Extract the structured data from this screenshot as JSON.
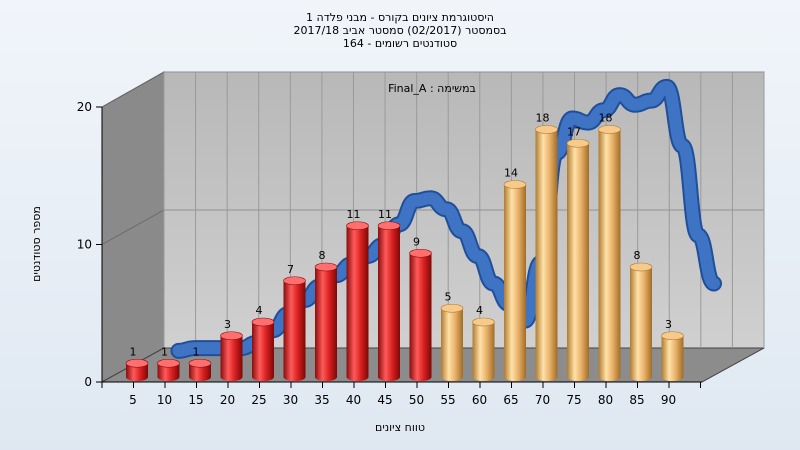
{
  "title_lines": [
    "היסטוגרמת ציונים בקורס - מבני פלדה 1",
    "בסמסטר  (02/2017)  סמסטר אביב 2017/18",
    "164 - סטודנטים רשומים"
  ],
  "colors": {
    "fail_bar": "#d62020",
    "pass_bar": "#e0a55a",
    "curve": "#3f74c4",
    "wall": "#c4c4c4",
    "left_wall": "#8a8a8a",
    "floor": "#8c8c8c"
  },
  "chart_data": {
    "type": "bar",
    "title": "היסטוגרמת ציונים בקורס - מבני פלדה 1",
    "annotation": "Final_A : במשימה",
    "xlabel": "טווח ציונים",
    "ylabel": "מספר סטודנטים",
    "ylim": [
      0,
      20
    ],
    "yticks": [
      0,
      10,
      20
    ],
    "grid": true,
    "categories": [
      "5",
      "10",
      "15",
      "20",
      "25",
      "30",
      "35",
      "40",
      "45",
      "50",
      "55",
      "60",
      "65",
      "70",
      "75",
      "80",
      "85",
      "90"
    ],
    "values": [
      1,
      1,
      1,
      3,
      4,
      7,
      8,
      11,
      11,
      9,
      5,
      4,
      14,
      18,
      17,
      18,
      8,
      3
    ],
    "pass_threshold": 55,
    "curve": {
      "x": [
        10,
        12.5,
        15,
        17.5,
        20,
        22.5,
        25,
        27.5,
        30,
        32.5,
        35,
        37.5,
        40,
        42.5,
        45,
        47.5,
        50,
        52.5,
        55,
        57.5,
        60,
        62.5,
        65,
        67.5,
        70,
        72.5,
        75,
        77.5,
        80,
        82.5,
        85,
        87.5,
        90,
        92.5,
        95
      ],
      "y": [
        1.1,
        1.3,
        1.3,
        1.3,
        1.3,
        1.7,
        2.6,
        3.8,
        4.8,
        5.8,
        6.6,
        7.4,
        8.0,
        8.8,
        10.3,
        12.0,
        12.2,
        11.4,
        9.8,
        8.0,
        6.0,
        4.5,
        3.3,
        7.5,
        15.5,
        18.0,
        17.7,
        18.6,
        19.7,
        19.0,
        19.3,
        20.3,
        16.0,
        9.5,
        6.0
      ]
    }
  }
}
